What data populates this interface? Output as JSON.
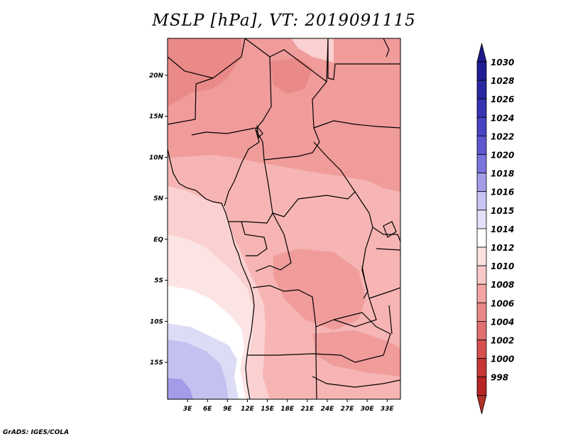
{
  "title": "MSLP [hPa], VT: 2019091115",
  "credit": "GrADS: IGES/COLA",
  "map": {
    "lon_ticks": [
      {
        "value": 3,
        "label": "3E"
      },
      {
        "value": 6,
        "label": "6E"
      },
      {
        "value": 9,
        "label": "9E"
      },
      {
        "value": 12,
        "label": "12E"
      },
      {
        "value": 15,
        "label": "15E"
      },
      {
        "value": 18,
        "label": "18E"
      },
      {
        "value": 21,
        "label": "21E"
      },
      {
        "value": 24,
        "label": "24E"
      },
      {
        "value": 27,
        "label": "27E"
      },
      {
        "value": 30,
        "label": "30E"
      },
      {
        "value": 33,
        "label": "33E"
      }
    ],
    "lat_ticks": [
      {
        "value": 20,
        "label": "20N"
      },
      {
        "value": 15,
        "label": "15N"
      },
      {
        "value": 10,
        "label": "10N"
      },
      {
        "value": 5,
        "label": "5N"
      },
      {
        "value": 0,
        "label": "EQ"
      },
      {
        "value": -5,
        "label": "5S"
      },
      {
        "value": -10,
        "label": "10S"
      },
      {
        "value": -15,
        "label": "15S"
      }
    ],
    "lon_range": [
      0,
      35
    ],
    "lat_range": [
      -19.5,
      24.5
    ]
  },
  "colorbar": {
    "levels": [
      {
        "value": "1030",
        "color": "#1f1d94"
      },
      {
        "value": "1028",
        "color": "#2a27a3"
      },
      {
        "value": "1026",
        "color": "#3633b2"
      },
      {
        "value": "1024",
        "color": "#4843c2"
      },
      {
        "value": "1022",
        "color": "#5e58d0"
      },
      {
        "value": "1020",
        "color": "#7b74dc"
      },
      {
        "value": "1018",
        "color": "#a39de8"
      },
      {
        "value": "1016",
        "color": "#c8c5f2"
      },
      {
        "value": "1015",
        "color": "#e2e1f8"
      },
      {
        "value": "1014",
        "color": "#ffffff"
      },
      {
        "value": "1012",
        "color": "#fde2e2"
      },
      {
        "value": "1010",
        "color": "#f8c7c7"
      },
      {
        "value": "1008",
        "color": "#f4a3a3"
      },
      {
        "value": "1006",
        "color": "#ea8888"
      },
      {
        "value": "1004",
        "color": "#e06f6f"
      },
      {
        "value": "1002",
        "color": "#d54f4f"
      },
      {
        "value": "1000",
        "color": "#c83535"
      },
      {
        "value": "998",
        "color": "#b82424"
      }
    ],
    "top_arrow_color": "#1d1a8c",
    "bottom_arrow_color": "#b0302a"
  },
  "colors": {
    "c1002": "#e0706c",
    "c1004": "#ea8a88",
    "c1006": "#f09c9b",
    "c1008": "#f6b5b4",
    "c1010": "#fbd0d0",
    "c1012": "#fde4e4",
    "c1014": "#ffffff",
    "c1015": "#dcdcf6",
    "c1016": "#c4c1f0",
    "c1018": "#a49ce9",
    "border": "#000000"
  }
}
